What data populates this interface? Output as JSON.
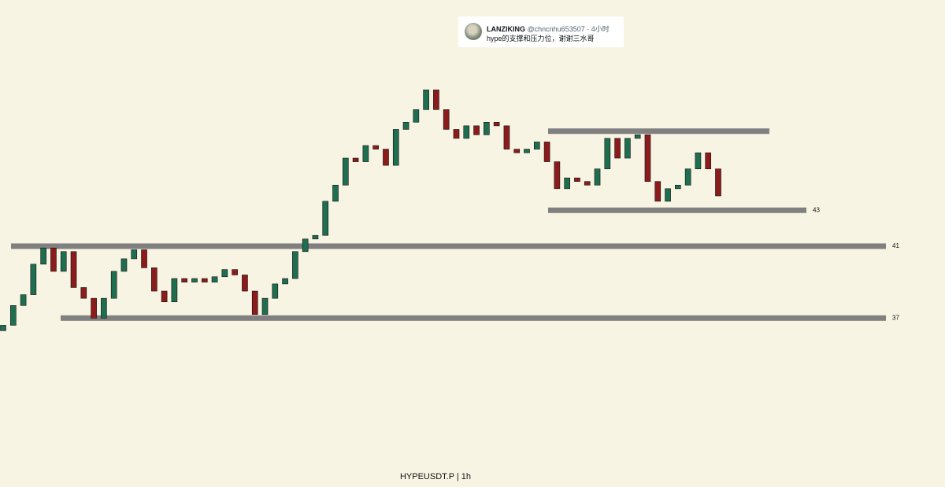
{
  "chart_data": {
    "type": "candlestick",
    "ylim": [
      27.6,
      54.7
    ],
    "open": [
      36.3,
      36.6,
      37.7,
      38.3,
      40.0,
      40.9,
      39.6,
      40.7,
      38.7,
      38.1,
      37.0,
      38.1,
      39.6,
      40.3,
      40.8,
      39.8,
      38.5,
      37.9,
      39.2,
      39.0,
      39.2,
      39.0,
      39.3,
      39.7,
      39.4,
      38.5,
      37.2,
      38.1,
      38.9,
      39.2,
      40.7,
      41.4,
      41.6,
      43.5,
      44.4,
      45.9,
      45.7,
      46.6,
      46.4,
      45.5,
      47.5,
      47.9,
      48.6,
      49.7,
      48.6,
      47.5,
      47.0,
      47.7,
      47.2,
      47.9,
      47.7,
      46.4,
      46.2,
      46.4,
      46.8,
      45.7,
      44.2,
      44.8,
      44.6,
      44.4,
      45.3,
      47.0,
      45.9,
      47.0,
      47.2,
      44.6,
      43.5,
      44.2,
      44.4,
      45.3,
      46.2,
      45.3
    ],
    "close": [
      36.6,
      37.7,
      38.3,
      40.0,
      40.9,
      39.6,
      40.7,
      38.7,
      38.1,
      37.0,
      38.1,
      39.6,
      40.3,
      40.8,
      39.8,
      38.5,
      37.9,
      39.2,
      39.0,
      39.2,
      39.0,
      39.3,
      39.7,
      39.4,
      38.5,
      37.2,
      38.1,
      38.9,
      39.2,
      40.7,
      41.4,
      41.6,
      43.5,
      44.4,
      45.9,
      45.7,
      46.6,
      46.4,
      45.5,
      47.5,
      47.9,
      48.6,
      49.7,
      48.6,
      47.5,
      47.0,
      47.7,
      47.2,
      47.9,
      47.7,
      46.4,
      46.2,
      46.4,
      46.8,
      45.7,
      44.2,
      44.8,
      44.6,
      44.4,
      45.3,
      47.0,
      45.9,
      47.0,
      47.2,
      44.6,
      43.5,
      44.2,
      44.4,
      45.3,
      46.2,
      45.3,
      43.8
    ],
    "up_color": "#1f6e50",
    "down_color": "#8c1c1c",
    "level_color": "#808080",
    "resistance": 47.4,
    "levels": [
      43,
      41,
      37
    ],
    "footer": "HYPEUSDT.P | 1h"
  },
  "tweet": {
    "name": "LANZIKING",
    "handle": "@chncnhu653507 · 4小时",
    "text": "hype的支撑和压力位，谢谢三水哥"
  }
}
